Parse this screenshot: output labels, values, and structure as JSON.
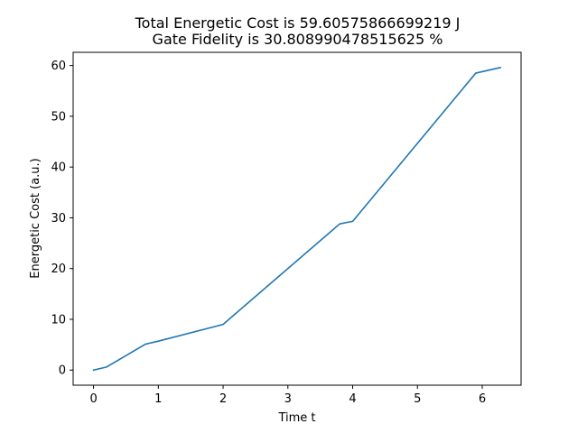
{
  "chart_data": {
    "type": "line",
    "title_lines": [
      "Total Energetic Cost is 59.60575866699219 J",
      "Gate Fidelity is 30.808990478515625 %"
    ],
    "xlabel": "Time t",
    "ylabel": "Energetic Cost (a.u.)",
    "xlim": [
      -0.315,
      6.6
    ],
    "ylim": [
      -2.98,
      62.6
    ],
    "x_ticks": [
      0,
      1,
      2,
      3,
      4,
      5,
      6
    ],
    "x_tick_labels": [
      "0",
      "1",
      "2",
      "3",
      "4",
      "5",
      "6"
    ],
    "y_ticks": [
      0,
      10,
      20,
      30,
      40,
      50,
      60
    ],
    "y_tick_labels": [
      "0",
      "10",
      "20",
      "30",
      "40",
      "50",
      "60"
    ],
    "grid": false,
    "series": [
      {
        "color": "#1f77b4",
        "x": [
          0,
          0.2,
          0.8,
          1.0,
          2.0,
          3.8,
          4.0,
          5.9,
          6.28
        ],
        "y": [
          0,
          0.6,
          5.1,
          5.7,
          9.0,
          28.8,
          29.3,
          58.5,
          59.6
        ]
      }
    ]
  }
}
